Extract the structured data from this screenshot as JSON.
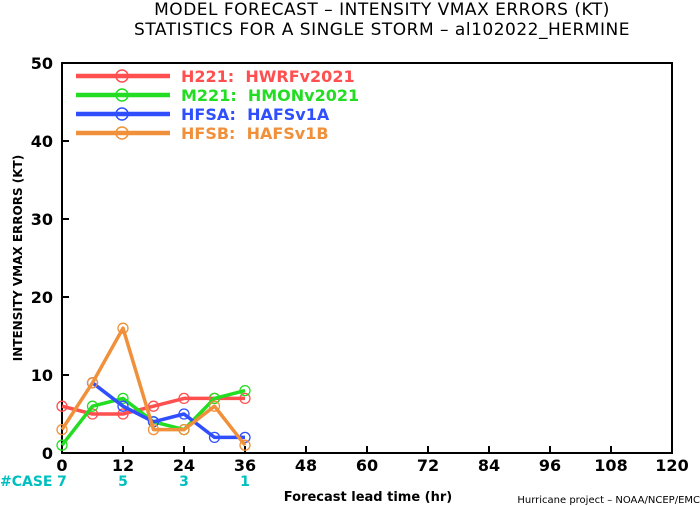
{
  "chart_data": {
    "type": "line",
    "title": "MODEL FORECAST – INTENSITY VMAX ERRORS (KT)",
    "subtitle": "STATISTICS FOR A SINGLE STORM – al102022_HERMINE",
    "xlabel": "Forecast lead time (hr)",
    "ylabel": "INTENSITY VMAX ERRORS (KT)",
    "xlim": [
      0,
      120
    ],
    "ylim": [
      0,
      50
    ],
    "x_ticks": [
      0,
      12,
      24,
      36,
      48,
      60,
      72,
      84,
      96,
      108,
      120
    ],
    "y_ticks": [
      0,
      10,
      20,
      30,
      40,
      50
    ],
    "grid": false,
    "legend_position": "top-left",
    "series": [
      {
        "name": "H221:  HWRFv2021",
        "color": "#ff4f4f",
        "x": [
          0,
          6,
          12,
          18,
          24,
          30,
          36
        ],
        "values": [
          6,
          5,
          5,
          6,
          7,
          7,
          7
        ]
      },
      {
        "name": "M221:  HMONv2021",
        "color": "#22dd22",
        "x": [
          0,
          6,
          12,
          18,
          24,
          30,
          36
        ],
        "values": [
          1,
          6,
          7,
          4,
          3,
          7,
          8
        ]
      },
      {
        "name": "HFSA:  HAFSv1A",
        "color": "#2f4fff",
        "x": [
          6,
          12,
          18,
          24,
          30,
          36
        ],
        "values": [
          9,
          6,
          4,
          5,
          2,
          2
        ]
      },
      {
        "name": "HFSB:  HAFSv1B",
        "color": "#f0903a",
        "x": [
          0,
          6,
          12,
          18,
          24,
          30,
          36
        ],
        "values": [
          3,
          9,
          16,
          3,
          3,
          6,
          1
        ]
      }
    ],
    "case_label": "#CASE",
    "case_label_color": "#00bfbf",
    "cases": [
      {
        "x": 0,
        "count": "7"
      },
      {
        "x": 12,
        "count": "5"
      },
      {
        "x": 24,
        "count": "3"
      },
      {
        "x": 36,
        "count": "1"
      }
    ],
    "credit": "Hurricane project – NOAA/NCEP/EMC"
  }
}
